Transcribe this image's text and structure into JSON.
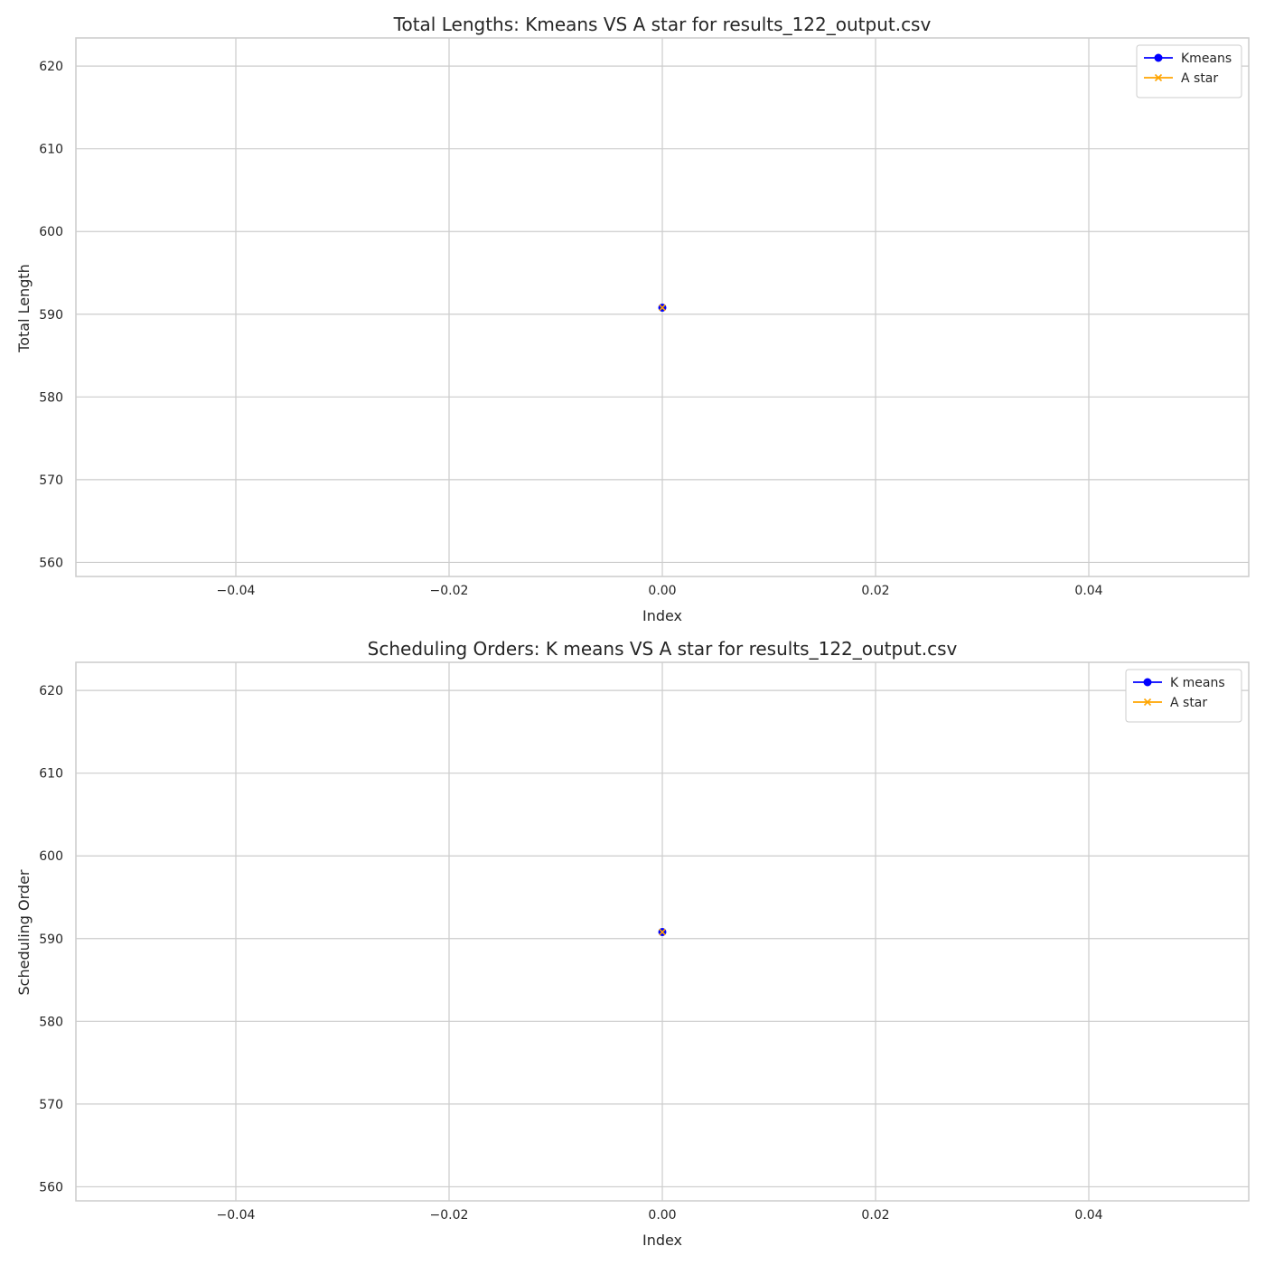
{
  "chart_data": [
    {
      "type": "line",
      "title": "Total Lengths: Kmeans VS A star for results_122_output.csv",
      "xlabel": "Index",
      "ylabel": "Total Length",
      "xlim": [
        -0.055,
        0.055
      ],
      "ylim": [
        558.3,
        623.4
      ],
      "xticks": [
        -0.04,
        -0.02,
        0.0,
        0.02,
        0.04
      ],
      "xtick_labels": [
        "−0.04",
        "−0.02",
        "0.00",
        "0.02",
        "0.04"
      ],
      "yticks": [
        560,
        570,
        580,
        590,
        600,
        610,
        620
      ],
      "ytick_labels": [
        "560",
        "570",
        "580",
        "590",
        "600",
        "610",
        "620"
      ],
      "grid": true,
      "legend_position": "top-right",
      "series": [
        {
          "name": "Kmeans",
          "x": [
            0
          ],
          "y": [
            590.8
          ],
          "color": "#0000ff",
          "marker": "circle"
        },
        {
          "name": "A star",
          "x": [
            0
          ],
          "y": [
            590.8
          ],
          "color": "#ffa500",
          "marker": "x"
        }
      ]
    },
    {
      "type": "line",
      "title": "Scheduling Orders: K means VS A star  for results_122_output.csv",
      "xlabel": "Index",
      "ylabel": "Scheduling Order",
      "xlim": [
        -0.055,
        0.055
      ],
      "ylim": [
        558.3,
        623.4
      ],
      "xticks": [
        -0.04,
        -0.02,
        0.0,
        0.02,
        0.04
      ],
      "xtick_labels": [
        "−0.04",
        "−0.02",
        "0.00",
        "0.02",
        "0.04"
      ],
      "yticks": [
        560,
        570,
        580,
        590,
        600,
        610,
        620
      ],
      "ytick_labels": [
        "560",
        "570",
        "580",
        "590",
        "600",
        "610",
        "620"
      ],
      "grid": true,
      "legend_position": "top-right",
      "series": [
        {
          "name": "K means",
          "x": [
            0
          ],
          "y": [
            590.8
          ],
          "color": "#0000ff",
          "marker": "circle"
        },
        {
          "name": "A star",
          "x": [
            0
          ],
          "y": [
            590.8
          ],
          "color": "#ffa500",
          "marker": "x"
        }
      ]
    }
  ]
}
